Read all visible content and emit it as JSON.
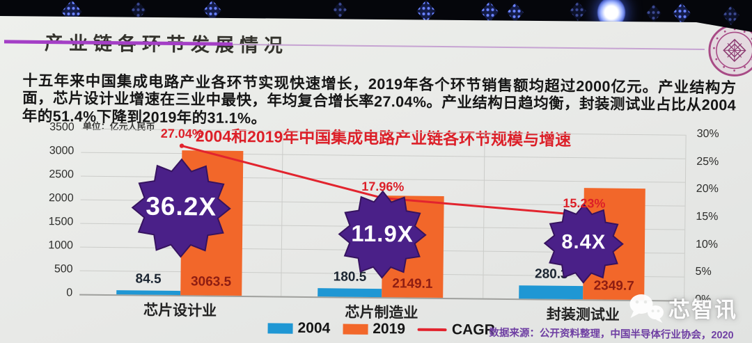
{
  "slide": {
    "header_title": "产业链各环节发展情况",
    "paragraph": "十五年来中国集成电路产业各环节实现快速增长，2019年各个环节销售额均超过2000亿元。产业结构方面，芯片设计业增速在三业中最快，年均复合增长率27.04%。产业结构日趋均衡，封装测试业占比从2004年的51.4%下降到2019年的31.1%。",
    "source_note": "数据来源：公开资料整理，中国半导体行业协会，2020",
    "watermark_text": "芯智讯"
  },
  "colors": {
    "title_underline_purple": "#a43fc6",
    "chart_title_red": "#dc1f28",
    "source_note_purple": "#6f3fa3",
    "slide_background": "#e8e9e7"
  },
  "chart_data": {
    "type": "bar",
    "title": "2004和2019年中国集成电路产业链各环节规模与增速",
    "unit_label": "单位：亿元人民币",
    "categories": [
      "芯片设计业",
      "芯片制造业",
      "封装测试业"
    ],
    "series": [
      {
        "name": "2004",
        "type": "bar",
        "color": "#1f97d4",
        "values": [
          84.5,
          180.5,
          280.3
        ]
      },
      {
        "name": "2019",
        "type": "bar",
        "color": "#f2672a",
        "values": [
          3063.5,
          2149.1,
          2349.7
        ]
      },
      {
        "name": "CAGR",
        "type": "line",
        "color": "#e2242e",
        "values_percent": [
          27.04,
          17.96,
          15.23
        ]
      }
    ],
    "cagr_labels": [
      "27.04%",
      "17.96%",
      "15.23%"
    ],
    "growth_multipliers": [
      "36.2X",
      "11.9X",
      "8.4X"
    ],
    "value_labels": {
      "2004": [
        "84.5",
        "180.5",
        "280.3"
      ],
      "2019": [
        "3063.5",
        "2149.1",
        "2349.7"
      ]
    },
    "label_colors": {
      "2004": "#1b2531",
      "2019": "#8e1d12"
    },
    "star_color": "#4a2088",
    "star_border_color": "#36135f",
    "left_axis": {
      "ticks": [
        3500,
        3000,
        2500,
        2000,
        1500,
        1000,
        500,
        0
      ],
      "min": 0,
      "max": 3500
    },
    "right_axis": {
      "ticks": [
        "30%",
        "25%",
        "20%",
        "15%",
        "10%",
        "5%",
        "0%"
      ],
      "min_percent": 0,
      "max_percent": 30
    },
    "legend_position": "bottom",
    "grid": true
  }
}
